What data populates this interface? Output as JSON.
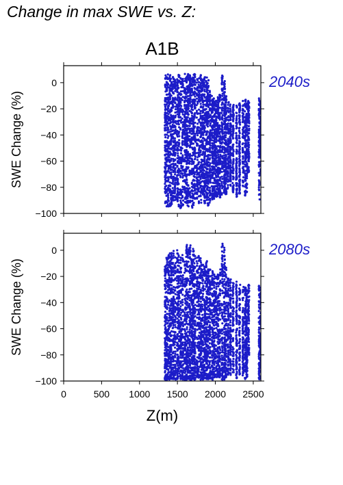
{
  "page_title": "Change in max SWE vs. Z:",
  "chart_data": [
    {
      "type": "scatter",
      "scenario_label": "A1B",
      "period_label": "2040s",
      "ylabel": "SWE Change (%)",
      "xlabel": "",
      "xlim": [
        0,
        2600
      ],
      "ylim": [
        -100,
        13
      ],
      "xticks": [
        0,
        500,
        1000,
        1500,
        2000,
        2500
      ],
      "yticks": [
        0,
        -20,
        -40,
        -60,
        -80,
        -100
      ],
      "xticklabels_visible": false,
      "marker_color": "#1c1cc8",
      "x_columns": [
        1340,
        1360,
        1380,
        1400,
        1420,
        1445,
        1470,
        1500,
        1520,
        1545,
        1570,
        1600,
        1620,
        1640,
        1665,
        1690,
        1710,
        1730,
        1760,
        1785,
        1810,
        1835,
        1860,
        1885,
        1905,
        1930,
        1960,
        1985,
        2010,
        2035,
        2060,
        2090,
        2120,
        2140,
        2170,
        2200,
        2235,
        2280,
        2320,
        2365,
        2395,
        2415,
        2440,
        2580,
        2600
      ],
      "y_top_envelope": [
        6,
        5,
        7,
        6,
        6,
        7,
        5,
        3,
        6,
        4,
        5,
        7,
        6,
        7,
        6,
        7,
        6,
        7,
        5,
        4,
        6,
        3,
        5,
        4,
        2,
        -5,
        -10,
        -12,
        -13,
        -11,
        -8,
        6,
        2,
        -10,
        -14,
        -16,
        -14,
        -16,
        -15,
        -14,
        -13,
        -15,
        -14,
        -12,
        -15
      ],
      "y_bottom_envelope": [
        -93,
        -95,
        -96,
        -95,
        -94,
        -92,
        -90,
        -91,
        -95,
        -96,
        -95,
        -93,
        -92,
        -95,
        -94,
        -96,
        -95,
        -90,
        -94,
        -95,
        -92,
        -88,
        -93,
        -91,
        -94,
        -92,
        -90,
        -89,
        -88,
        -87,
        -88,
        -86,
        -85,
        -86,
        -82,
        -80,
        -84,
        -88,
        -86,
        -80,
        -87,
        -85,
        -70,
        -90,
        -70
      ]
    },
    {
      "type": "scatter",
      "scenario_label": "",
      "period_label": "2080s",
      "ylabel": "SWE Change (%)",
      "xlabel": "Z(m)",
      "xlim": [
        0,
        2600
      ],
      "ylim": [
        -100,
        13
      ],
      "xticks": [
        0,
        500,
        1000,
        1500,
        2000,
        2500
      ],
      "yticks": [
        0,
        -20,
        -40,
        -60,
        -80,
        -100
      ],
      "xticklabels_visible": true,
      "marker_color": "#1c1cc8",
      "x_columns": [
        1340,
        1360,
        1380,
        1400,
        1420,
        1445,
        1470,
        1500,
        1520,
        1545,
        1570,
        1600,
        1620,
        1640,
        1665,
        1690,
        1710,
        1730,
        1760,
        1785,
        1810,
        1835,
        1860,
        1885,
        1905,
        1930,
        1960,
        1985,
        2010,
        2035,
        2060,
        2090,
        2120,
        2140,
        2170,
        2200,
        2235,
        2280,
        2320,
        2365,
        2395,
        2415,
        2440,
        2580,
        2600
      ],
      "y_top_envelope": [
        -12,
        -5,
        -3,
        -2,
        -1,
        0,
        -3,
        0,
        -2,
        -5,
        -3,
        -8,
        5,
        3,
        5,
        -4,
        4,
        -2,
        -5,
        -3,
        -6,
        -10,
        -12,
        -8,
        -11,
        -14,
        -16,
        -18,
        -20,
        -17,
        -14,
        5,
        2,
        -12,
        -19,
        -22,
        -25,
        -24,
        -26,
        -28,
        -27,
        -30,
        -25,
        -27,
        -30
      ],
      "y_bottom_envelope": [
        -99,
        -99,
        -99,
        -99,
        -99,
        -99,
        -99,
        -99,
        -99,
        -99,
        -99,
        -99,
        -99,
        -99,
        -99,
        -99,
        -99,
        -99,
        -98,
        -99,
        -99,
        -99,
        -98,
        -99,
        -99,
        -98,
        -99,
        -98,
        -98,
        -97,
        -98,
        -99,
        -99,
        -98,
        -96,
        -97,
        -95,
        -98,
        -95,
        -96,
        -99,
        -98,
        -80,
        -99,
        -90
      ]
    }
  ]
}
